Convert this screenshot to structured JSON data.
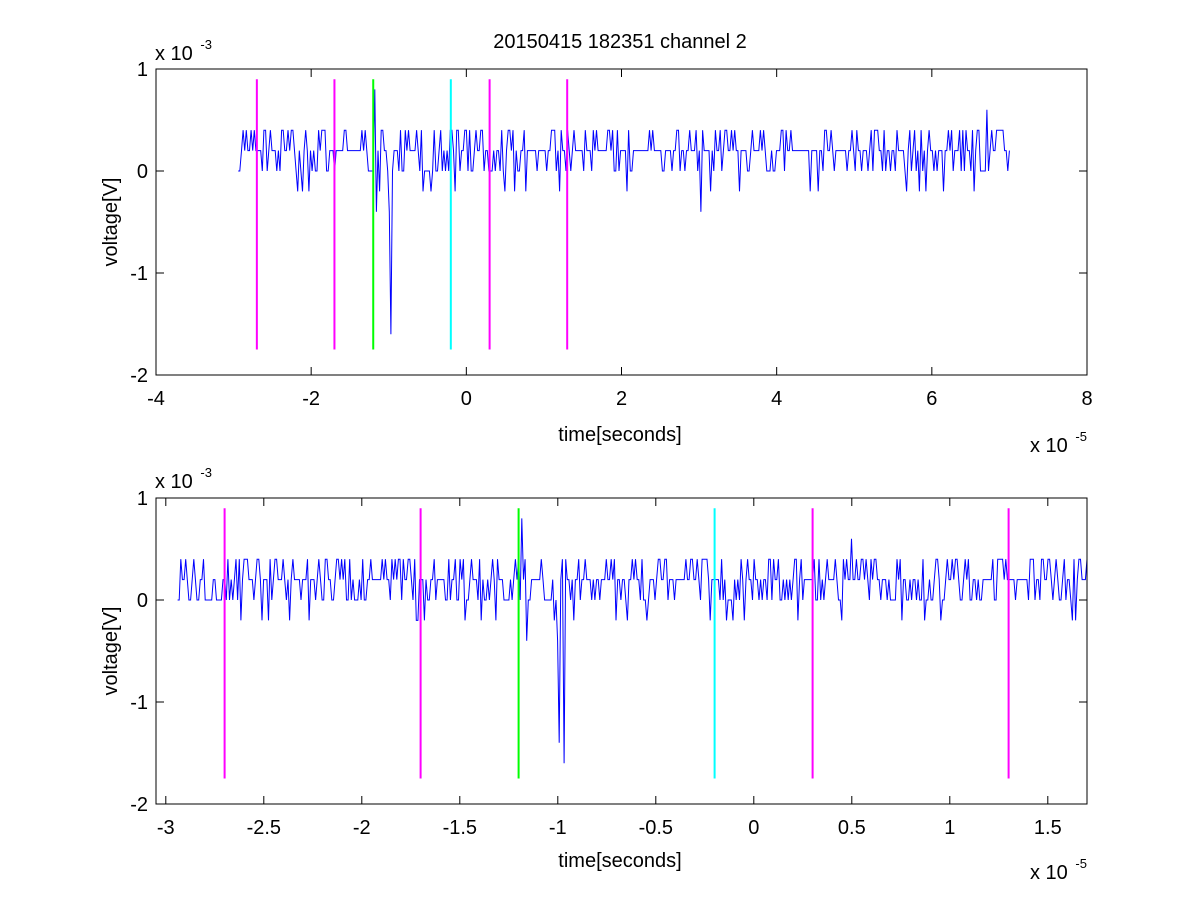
{
  "chart_data": [
    {
      "type": "line",
      "title": "20150415 182351 channel 2",
      "xlabel": "time[seconds]",
      "ylabel": "voltage[V]",
      "x_exponent_label": "x 10",
      "x_exponent_power": "-5",
      "y_exponent_label": "x 10",
      "y_exponent_power": "-3",
      "xlim": [
        -4e-05,
        8e-05
      ],
      "ylim": [
        -0.002,
        0.001
      ],
      "xticks": [
        -4e-05,
        -2e-05,
        0,
        2e-05,
        4e-05,
        6e-05,
        8e-05
      ],
      "xtick_labels": [
        "-4",
        "-2",
        "0",
        "2",
        "4",
        "6",
        "8"
      ],
      "yticks": [
        -0.002,
        -0.001,
        0,
        0.001
      ],
      "ytick_labels": [
        "-2",
        "-1",
        "0",
        "1"
      ],
      "grid": false,
      "series": [
        {
          "role": "signal",
          "color": "#0000ff",
          "x_start": -2.94e-05,
          "x_end": 7e-05,
          "baseline": 0.0002
        }
      ],
      "markers": [
        {
          "x": -2.7e-05,
          "color": "#ff00ff",
          "y_bottom": -0.00175,
          "y_top": 0.0009
        },
        {
          "x": -1.7e-05,
          "color": "#ff00ff",
          "y_bottom": -0.00175,
          "y_top": 0.0009
        },
        {
          "x": -1.2e-05,
          "color": "#00ff00",
          "y_bottom": -0.00175,
          "y_top": 0.0009
        },
        {
          "x": -2e-06,
          "color": "#00ffff",
          "y_bottom": -0.00175,
          "y_top": 0.0009
        },
        {
          "x": 3e-06,
          "color": "#ff00ff",
          "y_bottom": -0.00175,
          "y_top": 0.0009
        },
        {
          "x": 1.3e-05,
          "color": "#ff00ff",
          "y_bottom": -0.00175,
          "y_top": 0.0009
        }
      ],
      "features": [
        {
          "x": -1.18e-05,
          "y": 0.0008
        },
        {
          "x": -1.16e-05,
          "y": -0.0004
        },
        {
          "x": -9.8e-06,
          "y": -0.0016
        },
        {
          "x": 3.02e-05,
          "y": -0.0004
        },
        {
          "x": 6.7e-05,
          "y": 0.0006
        }
      ]
    },
    {
      "type": "line",
      "title": "",
      "xlabel": "time[seconds]",
      "ylabel": "voltage[V]",
      "x_exponent_label": "x 10",
      "x_exponent_power": "-5",
      "y_exponent_label": "x 10",
      "y_exponent_power": "-3",
      "xlim": [
        -3.05e-05,
        1.7e-05
      ],
      "ylim": [
        -0.002,
        0.001
      ],
      "xticks": [
        -3e-05,
        -2.5e-05,
        -2e-05,
        -1.5e-05,
        -1e-05,
        -5e-06,
        0,
        5e-06,
        1e-05,
        1.5e-05
      ],
      "xtick_labels": [
        "-3",
        "-2.5",
        "-2",
        "-1.5",
        "-1",
        "-0.5",
        "0",
        "0.5",
        "1",
        "1.5"
      ],
      "yticks": [
        -0.002,
        -0.001,
        0,
        0.001
      ],
      "ytick_labels": [
        "-2",
        "-1",
        "0",
        "1"
      ],
      "grid": false,
      "series": [
        {
          "role": "signal",
          "color": "#0000ff",
          "x_start": -2.94e-05,
          "x_end": 1.7e-05,
          "baseline": 0.0002
        }
      ],
      "markers": [
        {
          "x": -2.7e-05,
          "color": "#ff00ff",
          "y_bottom": -0.00175,
          "y_top": 0.0009
        },
        {
          "x": -1.7e-05,
          "color": "#ff00ff",
          "y_bottom": -0.00175,
          "y_top": 0.0009
        },
        {
          "x": -1.2e-05,
          "color": "#00ff00",
          "y_bottom": -0.00175,
          "y_top": 0.0009
        },
        {
          "x": -2e-06,
          "color": "#00ffff",
          "y_bottom": -0.00175,
          "y_top": 0.0009
        },
        {
          "x": 3e-06,
          "color": "#ff00ff",
          "y_bottom": -0.00175,
          "y_top": 0.0009
        },
        {
          "x": 1.3e-05,
          "color": "#ff00ff",
          "y_bottom": -0.00175,
          "y_top": 0.0009
        }
      ],
      "features": [
        {
          "x": -1.18e-05,
          "y": 0.0008
        },
        {
          "x": -1.16e-05,
          "y": -0.0004
        },
        {
          "x": -9.9e-06,
          "y": -0.0014
        },
        {
          "x": -9.7e-06,
          "y": -0.0016
        },
        {
          "x": 5e-06,
          "y": 0.0006
        }
      ]
    }
  ]
}
